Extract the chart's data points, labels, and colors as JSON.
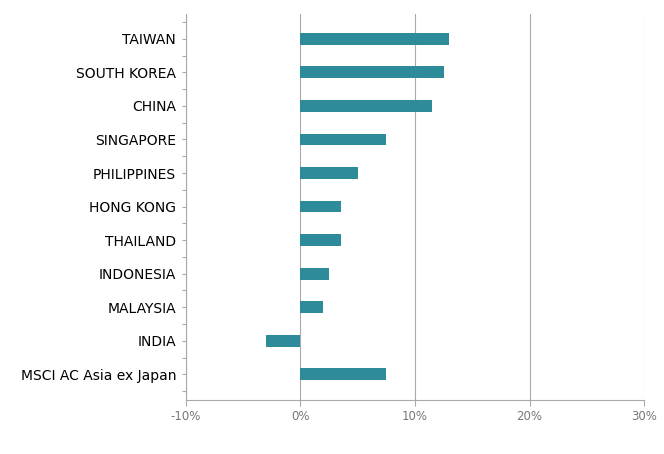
{
  "categories": [
    "TAIWAN",
    "SOUTH KOREA",
    "CHINA",
    "SINGAPORE",
    "PHILIPPINES",
    "HONG KONG",
    "THAILAND",
    "INDONESIA",
    "MALAYSIA",
    "INDIA",
    "MSCI AC Asia ex Japan"
  ],
  "values": [
    13.0,
    12.5,
    11.5,
    7.5,
    5.0,
    3.5,
    3.5,
    2.5,
    2.0,
    -3.0,
    7.5
  ],
  "bar_color": "#2e8b9a",
  "label_color": "#8B4513",
  "axis_label_color": "#777777",
  "background_color": "#ffffff",
  "xlim": [
    -10,
    30
  ],
  "xticks": [
    -10,
    0,
    10,
    20,
    30
  ],
  "xtick_labels": [
    "-10%",
    "0%",
    "10%",
    "20%",
    "30%"
  ],
  "bar_height": 0.35,
  "figsize": [
    6.64,
    4.54
  ],
  "dpi": 100
}
